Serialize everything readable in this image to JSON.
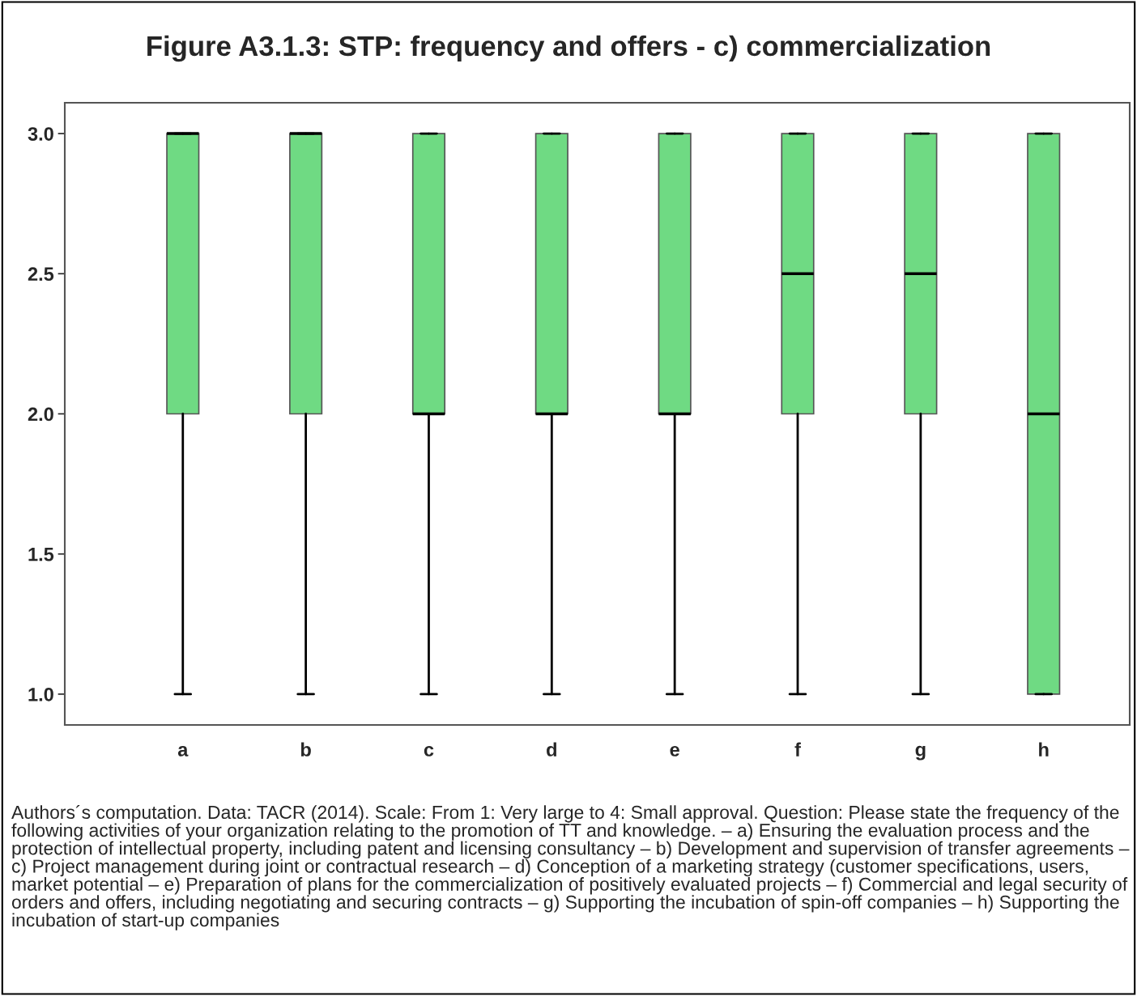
{
  "chart_data": {
    "type": "box",
    "title": "Figure A3.1.3: STP: frequency and offers - c) commercialization",
    "categories": [
      "a",
      "b",
      "c",
      "d",
      "e",
      "f",
      "g",
      "h"
    ],
    "color": "#6fda83",
    "boxes": [
      {
        "low": 1,
        "q1": 2,
        "median": 3,
        "q3": 3,
        "high": 3
      },
      {
        "low": 1,
        "q1": 2,
        "median": 3,
        "q3": 3,
        "high": 3
      },
      {
        "low": 1,
        "q1": 2,
        "median": 2,
        "q3": 3,
        "high": 3
      },
      {
        "low": 1,
        "q1": 2,
        "median": 2,
        "q3": 3,
        "high": 3
      },
      {
        "low": 1,
        "q1": 2,
        "median": 2,
        "q3": 3,
        "high": 3
      },
      {
        "low": 1,
        "q1": 2,
        "median": 2.5,
        "q3": 3,
        "high": 3
      },
      {
        "low": 1,
        "q1": 2,
        "median": 2.5,
        "q3": 3,
        "high": 3
      },
      {
        "low": 1,
        "q1": 1,
        "median": 2,
        "q3": 3,
        "high": 3
      }
    ],
    "ylim": [
      0.89,
      3.11
    ],
    "yticks": [
      {
        "value": 1,
        "label": "1.0"
      },
      {
        "value": 1.5,
        "label": "1.5"
      },
      {
        "value": 2,
        "label": "2.0"
      },
      {
        "value": 2.5,
        "label": "2.5"
      },
      {
        "value": 3,
        "label": "3.0"
      }
    ],
    "annotations": [
      "Authors´s computation. Data: TACR (2014). Scale: From 1: Very large to 4: Small approval. Question: Please state the frequency of the following activities of your organization relating to the promotion of TT and knowledge. – a) Ensuring the evaluation process and the protection of intellectual property, including patent and licensing consultancy – b) Development and supervision of transfer agreements – c) Project management during joint or contractual research – d) Conception of a marketing strategy (customer specifications, users, market potential – e) Preparation of plans for the commercialization of positively evaluated projects – f) Commercial and legal security of orders and offers, including negotiating and securing contracts – g) Supporting the incubation of spin-off companies – h) Supporting the incubation of start-up companies"
    ]
  }
}
